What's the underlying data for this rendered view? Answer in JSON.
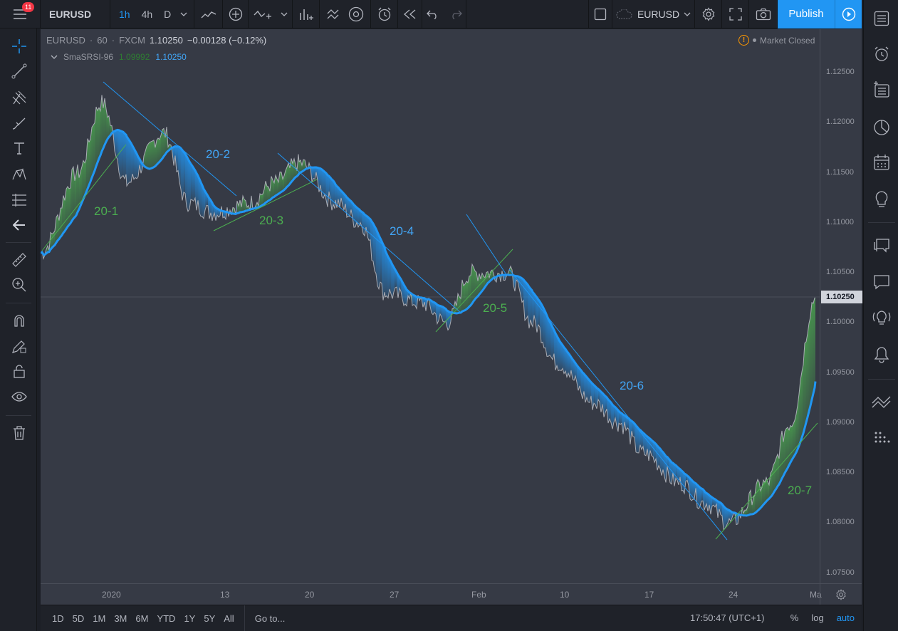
{
  "topbar": {
    "notification_count": "11",
    "symbol": "EURUSD",
    "intervals": [
      "1h",
      "4h",
      "D"
    ],
    "compare_symbol": "EURUSD",
    "publish_label": "Publish"
  },
  "chart": {
    "legend": {
      "symbol": "EURUSD",
      "sep1": "·",
      "interval": "60",
      "sep2": "·",
      "exchange": "FXCM",
      "price": "1.10250",
      "change": "−0.00128 (−0.12%)"
    },
    "indicator": {
      "name": "SmaSRSI-96",
      "value1": "1.09992",
      "value2": "1.10250"
    },
    "market_status": "Market Closed",
    "price_ticks": [
      "1.12500",
      "1.12000",
      "1.11500",
      "1.11000",
      "1.10500",
      "1.10000",
      "1.09500",
      "1.09000",
      "1.08500",
      "1.08000",
      "1.07500"
    ],
    "last_price": "1.10250",
    "time_ticks": [
      "2020",
      "13",
      "20",
      "27",
      "Feb",
      "10",
      "17",
      "24",
      "Ma"
    ],
    "wave_labels": [
      "20-1",
      "20-2",
      "20-3",
      "20-4",
      "20-5",
      "20-6",
      "20-7"
    ]
  },
  "bottombar": {
    "ranges": [
      "1D",
      "5D",
      "1M",
      "3M",
      "6M",
      "YTD",
      "1Y",
      "5Y",
      "All"
    ],
    "goto_label": "Go to...",
    "clock": "17:50:47 (UTC+1)",
    "percent_label": "%",
    "log_label": "log",
    "auto_label": "auto"
  },
  "colors": {
    "accent": "#2196f3",
    "bull": "#4caf50",
    "bear": "#42a5f5",
    "chart_bg": "#363a45"
  },
  "chart_data": {
    "type": "line",
    "title": "",
    "ylim": [
      1.074,
      1.128
    ],
    "series": [
      {
        "name": "",
        "x": [
          "2019-12-27",
          "2019-12-30",
          "2020-01-01",
          "2020-01-03",
          "2020-01-06",
          "2020-01-08",
          "2020-01-10",
          "2020-01-13",
          "2020-01-15",
          "2020-01-17",
          "2020-01-20",
          "2020-01-22",
          "2020-01-24",
          "2020-01-27",
          "2020-01-29",
          "2020-01-31",
          "2020-02-03",
          "2020-02-05",
          "2020-02-07",
          "2020-02-10",
          "2020-02-12",
          "2020-02-14",
          "2020-02-17",
          "2020-02-19",
          "2020-02-21",
          "2020-02-24",
          "2020-02-26",
          "2020-02-28"
        ],
        "values": [
          1.107,
          1.115,
          1.122,
          1.114,
          1.119,
          1.112,
          1.111,
          1.112,
          1.114,
          1.116,
          1.112,
          1.11,
          1.103,
          1.102,
          1.1,
          1.105,
          1.105,
          1.1,
          1.096,
          1.092,
          1.09,
          1.087,
          1.084,
          1.082,
          1.08,
          1.084,
          1.09,
          1.1025
        ]
      }
    ],
    "annotations": [
      "20-1",
      "20-2",
      "20-3",
      "20-4",
      "20-5",
      "20-6",
      "20-7"
    ]
  }
}
